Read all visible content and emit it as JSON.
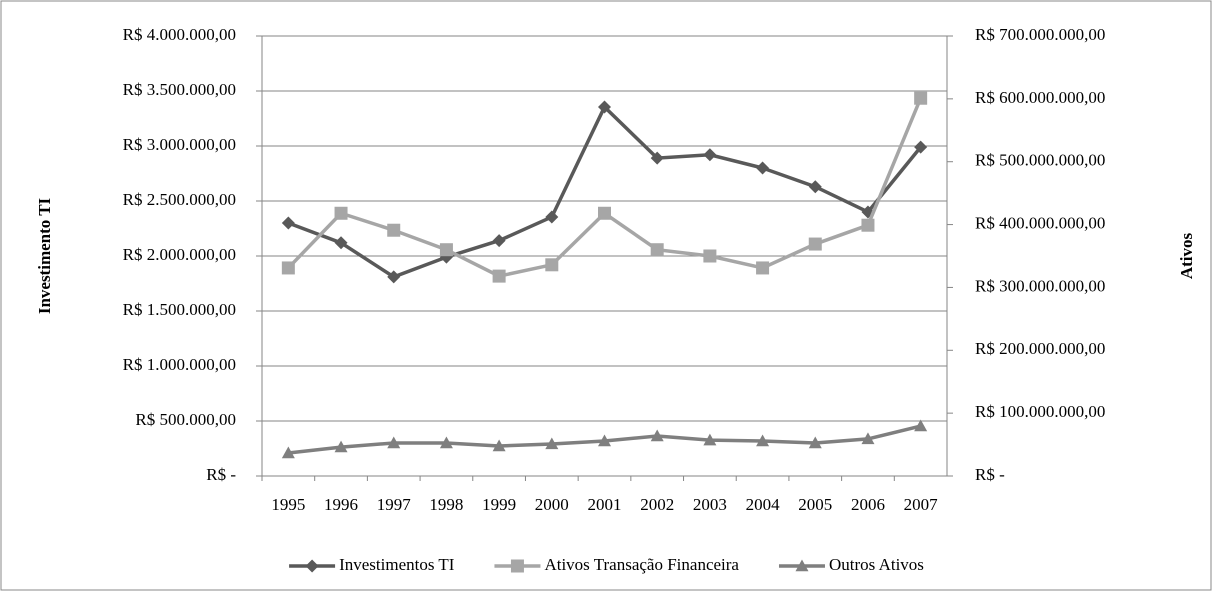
{
  "chart_data": {
    "type": "line",
    "y_label": "Investimento TI",
    "y2_label": "Ativos",
    "categories": [
      "1995",
      "1996",
      "1997",
      "1998",
      "1999",
      "2000",
      "2001",
      "2002",
      "2003",
      "2004",
      "2005",
      "2006",
      "2007"
    ],
    "ylim": [
      0,
      4000000
    ],
    "yticks": [
      {
        "value": 0,
        "label": "R$ -"
      },
      {
        "value": 500000,
        "label": "R$ 500.000,00"
      },
      {
        "value": 1000000,
        "label": "R$ 1.000.000,00"
      },
      {
        "value": 1500000,
        "label": "R$ 1.500.000,00"
      },
      {
        "value": 2000000,
        "label": "R$ 2.000.000,00"
      },
      {
        "value": 2500000,
        "label": "R$ 2.500.000,00"
      },
      {
        "value": 3000000,
        "label": "R$ 3.000.000,00"
      },
      {
        "value": 3500000,
        "label": "R$ 3.500.000,00"
      },
      {
        "value": 4000000,
        "label": "R$ 4.000.000,00"
      }
    ],
    "y2lim": [
      0,
      700000000
    ],
    "y2ticks": [
      {
        "value": 0,
        "label": "R$ -"
      },
      {
        "value": 100000000,
        "label": "R$ 100.000.000,00"
      },
      {
        "value": 200000000,
        "label": "R$ 200.000.000,00"
      },
      {
        "value": 300000000,
        "label": "R$ 300.000.000,00"
      },
      {
        "value": 400000000,
        "label": "R$ 400.000.000,00"
      },
      {
        "value": 500000000,
        "label": "R$ 500.000.000,00"
      },
      {
        "value": 600000000,
        "label": "R$ 600.000.000,00"
      },
      {
        "value": 700000000,
        "label": "R$ 700.000.000,00"
      }
    ],
    "grid": true,
    "legend": "bottom",
    "series": [
      {
        "name": "Investimentos TI",
        "color": "#595959",
        "marker": "diamond",
        "axis": "y",
        "values": [
          2300000,
          2120000,
          1810000,
          1990000,
          2140000,
          2355000,
          3355000,
          2890000,
          2920000,
          2800000,
          2630000,
          2400000,
          2990000
        ]
      },
      {
        "name": "Ativos Transação Financeira",
        "color": "#a6a6a6",
        "marker": "square",
        "axis": "y2",
        "values": [
          331000000,
          418000000,
          391000000,
          360000000,
          318000000,
          336000000,
          418000000,
          360000000,
          350000000,
          331000000,
          369000000,
          399000000,
          601000000
        ]
      },
      {
        "name": "Outros Ativos",
        "color": "#7f7f7f",
        "marker": "triangle",
        "axis": "y2",
        "values": [
          36600000,
          46000000,
          52500000,
          52500000,
          47700000,
          51000000,
          55700000,
          63600000,
          57000000,
          55700000,
          52500000,
          59000000,
          79500000
        ]
      }
    ]
  }
}
